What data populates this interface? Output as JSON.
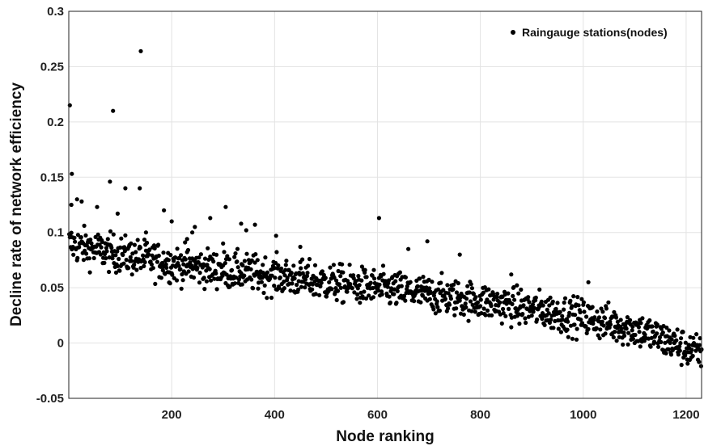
{
  "chart_data": {
    "type": "scatter",
    "xlabel": "Node ranking",
    "ylabel": "Decline rate of network efficiency",
    "xlim": [
      0,
      1230
    ],
    "ylim": [
      -0.05,
      0.3
    ],
    "xticks": [
      200,
      400,
      600,
      800,
      1000,
      1200
    ],
    "yticks": [
      -0.05,
      0,
      0.05,
      0.1,
      0.15,
      0.2,
      0.25,
      0.3
    ],
    "xtick_labels": [
      "200",
      "400",
      "600",
      "800",
      "1000",
      "1200"
    ],
    "ytick_labels": [
      "-0.05",
      "0",
      "0.05",
      "0.1",
      "0.15",
      "0.2",
      "0.25",
      "0.3"
    ],
    "grid": true,
    "legend_position": "top-right",
    "series": [
      {
        "name": "Raingauge stations(nodes)",
        "color": "#000000",
        "marker": "dot",
        "trend": {
          "x": [
            0,
            100,
            200,
            300,
            400,
            500,
            600,
            700,
            800,
            900,
            1000,
            1100,
            1230
          ],
          "y": [
            0.09,
            0.08,
            0.072,
            0.066,
            0.061,
            0.055,
            0.05,
            0.044,
            0.038,
            0.031,
            0.023,
            0.013,
            -0.01
          ]
        },
        "spread": 0.012,
        "count": 1230,
        "outliers": [
          [
            2,
            0.215
          ],
          [
            140,
            0.264
          ],
          [
            86,
            0.21
          ],
          [
            6,
            0.153
          ],
          [
            80,
            0.146
          ],
          [
            110,
            0.14
          ],
          [
            138,
            0.14
          ],
          [
            16,
            0.13
          ],
          [
            5,
            0.125
          ],
          [
            25,
            0.128
          ],
          [
            55,
            0.123
          ],
          [
            95,
            0.117
          ],
          [
            185,
            0.12
          ],
          [
            200,
            0.11
          ],
          [
            240,
            0.1
          ],
          [
            245,
            0.105
          ],
          [
            275,
            0.113
          ],
          [
            305,
            0.123
          ],
          [
            335,
            0.108
          ],
          [
            345,
            0.102
          ],
          [
            362,
            0.107
          ],
          [
            403,
            0.097
          ],
          [
            450,
            0.087
          ],
          [
            603,
            0.113
          ],
          [
            660,
            0.085
          ],
          [
            697,
            0.092
          ],
          [
            760,
            0.08
          ],
          [
            860,
            0.062
          ],
          [
            1010,
            0.055
          ],
          [
            300,
            0.09
          ],
          [
            150,
            0.1
          ],
          [
            230,
            0.094
          ]
        ]
      }
    ]
  }
}
